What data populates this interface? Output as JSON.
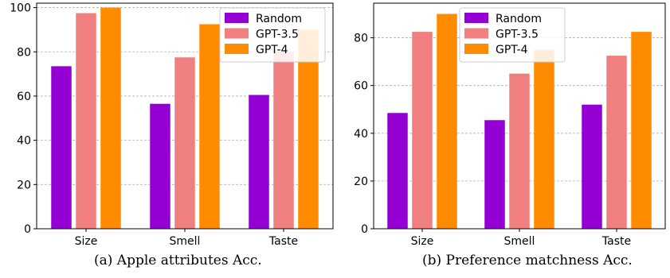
{
  "chart_data": [
    {
      "type": "bar",
      "caption": "(a)  Apple attributes Acc.",
      "title": "",
      "xlabel": "",
      "ylabel": "",
      "categories": [
        "Size",
        "Smell",
        "Taste"
      ],
      "series": [
        {
          "name": "Random",
          "values": [
            73.5,
            56.5,
            60.5
          ],
          "color": "#9400d3"
        },
        {
          "name": "GPT-3.5",
          "values": [
            97.5,
            77.5,
            80
          ],
          "color": "#f08080"
        },
        {
          "name": "GPT-4",
          "values": [
            100,
            92.5,
            90
          ],
          "color": "#ff8c00"
        }
      ],
      "ylim": [
        0,
        102
      ],
      "yticks": [
        0,
        20,
        40,
        60,
        80,
        100
      ],
      "grid": "y-dashed",
      "legend": "top-right"
    },
    {
      "type": "bar",
      "caption": "(b)  Preference matchness Acc.",
      "title": "",
      "xlabel": "",
      "ylabel": "",
      "categories": [
        "Size",
        "Smell",
        "Taste"
      ],
      "series": [
        {
          "name": "Random",
          "values": [
            48.5,
            45.5,
            52
          ],
          "color": "#9400d3"
        },
        {
          "name": "GPT-3.5",
          "values": [
            82.5,
            65,
            72.5
          ],
          "color": "#f08080"
        },
        {
          "name": "GPT-4",
          "values": [
            90,
            75,
            82.5
          ],
          "color": "#ff8c00"
        }
      ],
      "ylim": [
        0,
        94.5
      ],
      "yticks": [
        0,
        20,
        40,
        60,
        80
      ],
      "grid": "y-dashed",
      "legend": "top-center"
    }
  ]
}
